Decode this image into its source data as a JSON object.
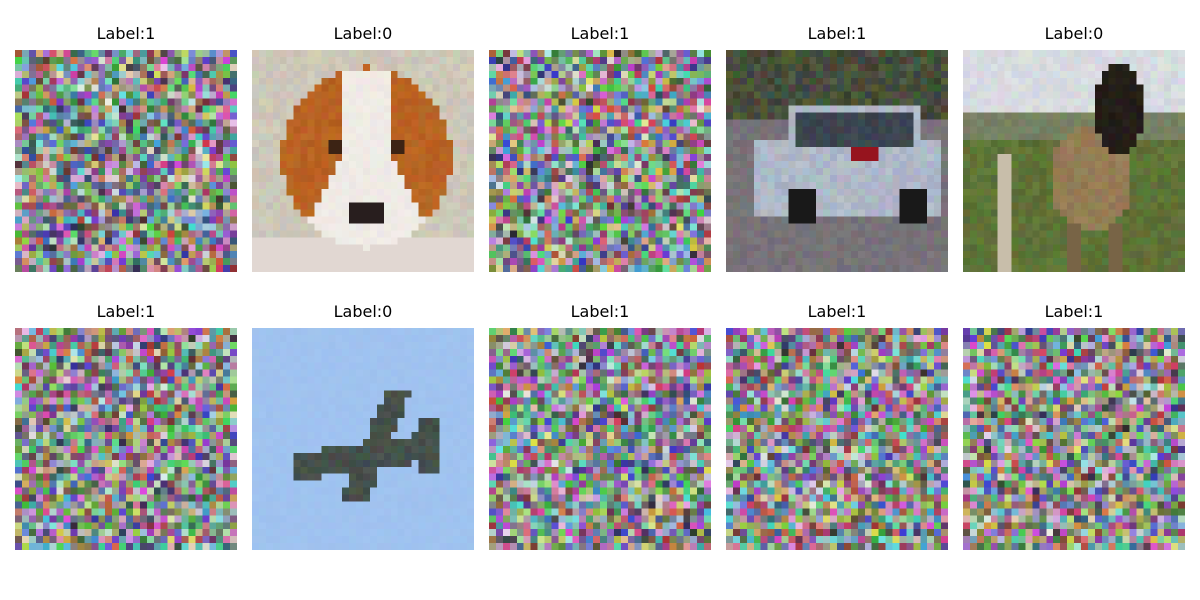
{
  "figure": {
    "panels": [
      {
        "label": "Label:1",
        "image_kind": "noise",
        "seed": 11,
        "tint": ""
      },
      {
        "label": "Label:0",
        "image_kind": "dog",
        "seed": 0,
        "tint": ""
      },
      {
        "label": "Label:1",
        "image_kind": "noise",
        "seed": 23,
        "tint": ""
      },
      {
        "label": "Label:1",
        "image_kind": "car",
        "seed": 0,
        "tint": ""
      },
      {
        "label": "Label:0",
        "image_kind": "horse",
        "seed": 0,
        "tint": ""
      },
      {
        "label": "Label:1",
        "image_kind": "noise",
        "seed": 37,
        "tint": ""
      },
      {
        "label": "Label:0",
        "image_kind": "airplane",
        "seed": 0,
        "tint": ""
      },
      {
        "label": "Label:1",
        "image_kind": "noise",
        "seed": 41,
        "tint": ""
      },
      {
        "label": "Label:1",
        "image_kind": "noise",
        "seed": 53,
        "tint": ""
      },
      {
        "label": "Label:1",
        "image_kind": "noise",
        "seed": 67,
        "tint": ""
      }
    ]
  }
}
